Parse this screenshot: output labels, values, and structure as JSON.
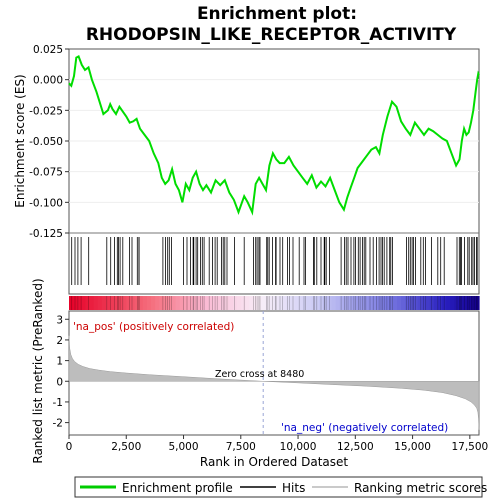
{
  "chart_data": {
    "type": "line",
    "title_line1": "Enrichment plot:",
    "title_line2": "RHODOPSIN_LIKE_RECEPTOR_ACTIVITY",
    "top_panel": {
      "ylabel": "Enrichment score (ES)",
      "xlim": [
        0,
        17900
      ],
      "ylim": [
        -0.125,
        0.025
      ],
      "yticks": [
        0.025,
        0.0,
        -0.025,
        -0.05,
        -0.075,
        -0.1,
        -0.125
      ],
      "ytick_labels": [
        "0.025",
        "0.000",
        "-0.025",
        "-0.050",
        "-0.075",
        "-0.100",
        "-0.125"
      ],
      "es_curve": {
        "x": [
          0,
          100,
          220,
          320,
          420,
          560,
          700,
          850,
          1000,
          1200,
          1500,
          1700,
          1800,
          1900,
          2050,
          2200,
          2350,
          2500,
          2650,
          2800,
          2950,
          3100,
          3300,
          3500,
          3700,
          3900,
          4050,
          4200,
          4350,
          4500,
          4650,
          4800,
          4950,
          5100,
          5250,
          5400,
          5550,
          5700,
          5850,
          6000,
          6200,
          6400,
          6600,
          6800,
          7000,
          7200,
          7400,
          7650,
          7800,
          8000,
          8150,
          8300,
          8450,
          8600,
          8750,
          8900,
          9050,
          9200,
          9400,
          9600,
          9800,
          10000,
          10200,
          10400,
          10600,
          10800,
          11000,
          11200,
          11400,
          11600,
          11800,
          12000,
          12150,
          12300,
          12450,
          12600,
          12800,
          13000,
          13200,
          13400,
          13550,
          13700,
          13900,
          14100,
          14300,
          14500,
          14700,
          14900,
          15100,
          15300,
          15500,
          15700,
          15900,
          16100,
          16300,
          16500,
          16700,
          16900,
          17050,
          17150,
          17250,
          17350,
          17450,
          17550,
          17650,
          17750,
          17820,
          17870,
          17900
        ],
        "y": [
          -0.003,
          -0.005,
          0.003,
          0.018,
          0.019,
          0.012,
          0.008,
          0.01,
          0.0,
          -0.01,
          -0.028,
          -0.025,
          -0.02,
          -0.024,
          -0.028,
          -0.022,
          -0.026,
          -0.03,
          -0.035,
          -0.034,
          -0.032,
          -0.04,
          -0.045,
          -0.05,
          -0.06,
          -0.068,
          -0.08,
          -0.085,
          -0.082,
          -0.073,
          -0.085,
          -0.09,
          -0.1,
          -0.085,
          -0.09,
          -0.08,
          -0.075,
          -0.085,
          -0.09,
          -0.086,
          -0.092,
          -0.082,
          -0.086,
          -0.082,
          -0.092,
          -0.098,
          -0.108,
          -0.095,
          -0.1,
          -0.108,
          -0.085,
          -0.08,
          -0.085,
          -0.09,
          -0.07,
          -0.06,
          -0.065,
          -0.068,
          -0.068,
          -0.063,
          -0.07,
          -0.075,
          -0.08,
          -0.085,
          -0.078,
          -0.088,
          -0.083,
          -0.087,
          -0.08,
          -0.09,
          -0.1,
          -0.106,
          -0.096,
          -0.088,
          -0.08,
          -0.072,
          -0.067,
          -0.062,
          -0.057,
          -0.055,
          -0.06,
          -0.045,
          -0.03,
          -0.018,
          -0.022,
          -0.034,
          -0.04,
          -0.045,
          -0.035,
          -0.04,
          -0.045,
          -0.04,
          -0.042,
          -0.045,
          -0.048,
          -0.05,
          -0.06,
          -0.07,
          -0.065,
          -0.05,
          -0.04,
          -0.045,
          -0.043,
          -0.035,
          -0.025,
          -0.01,
          0.0,
          0.005,
          0.004
        ]
      }
    },
    "hits": [
      120,
      260,
      390,
      530,
      860,
      1650,
      1820,
      1990,
      2110,
      2160,
      2230,
      2350,
      2640,
      2750,
      2980,
      3050,
      3060,
      4100,
      4210,
      4310,
      4380,
      4470,
      5000,
      5150,
      5310,
      5420,
      5450,
      5550,
      5620,
      5740,
      5820,
      5900,
      6120,
      6270,
      6380,
      6470,
      6660,
      6730,
      6800,
      6900,
      7230,
      7650,
      8060,
      8150,
      8210,
      8290,
      8340,
      8630,
      8680,
      8740,
      8880,
      9020,
      9040,
      9210,
      9330,
      9540,
      9630,
      9780,
      10050,
      10260,
      10330,
      10670,
      10710,
      10820,
      11000,
      11140,
      11170,
      11230,
      11370,
      11880,
      12030,
      12100,
      12180,
      12310,
      12440,
      12510,
      12630,
      12710,
      12820,
      12890,
      12960,
      13140,
      13280,
      13420,
      13540,
      13620,
      13690,
      13760,
      13880,
      14000,
      14050,
      14120,
      14730,
      14830,
      14900,
      14980,
      15040,
      15130,
      15360,
      15470,
      15560,
      15820,
      16100,
      16230,
      16380,
      16940,
      17040,
      17090,
      17130,
      17270,
      17410,
      17470,
      17580,
      17640,
      17710,
      17790,
      17820
    ],
    "ranking_panel": {
      "ylabel": "Ranked list metric (PreRanked)",
      "xlabel": "Rank in Ordered Dataset",
      "xlim": [
        0,
        17900
      ],
      "ylim": [
        -2.6,
        3.4
      ],
      "yticks": [
        3,
        2,
        1,
        0,
        -1,
        -2
      ],
      "xticks": [
        0,
        2500,
        5000,
        7500,
        10000,
        12500,
        15000,
        17500
      ],
      "xtick_labels": [
        "0",
        "2,500",
        "5,000",
        "7,500",
        "10,000",
        "12,500",
        "15,000",
        "17,500"
      ],
      "metric_curve": {
        "x": [
          0,
          30,
          80,
          150,
          250,
          400,
          600,
          900,
          1300,
          1800,
          2500,
          3500,
          5000,
          6500,
          8480,
          10000,
          11500,
          13000,
          14500,
          15500,
          16300,
          16900,
          17300,
          17550,
          17700,
          17800,
          17850,
          17880,
          17900
        ],
        "y": [
          2.2,
          1.6,
          1.3,
          1.1,
          0.95,
          0.82,
          0.72,
          0.62,
          0.54,
          0.47,
          0.4,
          0.32,
          0.22,
          0.12,
          0.0,
          -0.08,
          -0.16,
          -0.24,
          -0.34,
          -0.43,
          -0.55,
          -0.7,
          -0.85,
          -1.0,
          -1.15,
          -1.3,
          -1.5,
          -1.8,
          -2.35
        ]
      },
      "zero_cross_label": "Zero cross at 8480",
      "zero_cross_rank": 8480,
      "pos_label": "'na_pos' (positively correlated)",
      "neg_label": "'na_neg' (negatively correlated)"
    },
    "legend": [
      {
        "label": "Enrichment profile",
        "color": "#00cc00"
      },
      {
        "label": "Hits",
        "color": "#000000"
      },
      {
        "label": "Ranking metric scores",
        "color": "#b8b8b8"
      }
    ]
  }
}
